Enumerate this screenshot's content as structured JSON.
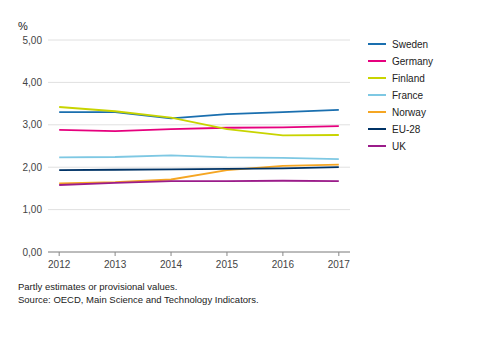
{
  "chart_data": {
    "type": "line",
    "y_label": "%",
    "annotations": [
      "Partly estimates or provisional values.",
      "Source: OECD, Main Science and Technology Indicators."
    ],
    "x": [
      2012,
      2013,
      2014,
      2015,
      2016,
      2017
    ],
    "xlim": [
      2011.8,
      2017.2
    ],
    "xticks": [
      2012,
      2013,
      2014,
      2015,
      2016,
      2017
    ],
    "ylim": [
      0.0,
      5.0
    ],
    "yticks": [
      {
        "value": 0.0,
        "label": "0,00"
      },
      {
        "value": 1.0,
        "label": "1,00"
      },
      {
        "value": 2.0,
        "label": "2,00"
      },
      {
        "value": 3.0,
        "label": "3,00"
      },
      {
        "value": 4.0,
        "label": "4,00"
      },
      {
        "value": 5.0,
        "label": "5,00"
      }
    ],
    "grid": true,
    "legend": "right",
    "series": [
      {
        "name": "Sweden",
        "color": "#1a6faf",
        "values": [
          3.3,
          3.3,
          3.15,
          3.25,
          3.3,
          3.35
        ]
      },
      {
        "name": "Germany",
        "color": "#e6007e",
        "values": [
          2.88,
          2.85,
          2.9,
          2.93,
          2.94,
          2.97
        ]
      },
      {
        "name": "Finland",
        "color": "#c8d400",
        "values": [
          3.42,
          3.32,
          3.17,
          2.9,
          2.75,
          2.76
        ]
      },
      {
        "name": "France",
        "color": "#7ec8e3",
        "values": [
          2.23,
          2.24,
          2.28,
          2.23,
          2.22,
          2.19
        ]
      },
      {
        "name": "Norway",
        "color": "#f5a623",
        "values": [
          1.62,
          1.65,
          1.71,
          1.93,
          2.03,
          2.06
        ]
      },
      {
        "name": "EU-28",
        "color": "#003366",
        "values": [
          1.93,
          1.94,
          1.95,
          1.96,
          1.97,
          2.0
        ]
      },
      {
        "name": "UK",
        "color": "#9b1c8a",
        "values": [
          1.58,
          1.63,
          1.67,
          1.67,
          1.68,
          1.67
        ]
      }
    ]
  }
}
